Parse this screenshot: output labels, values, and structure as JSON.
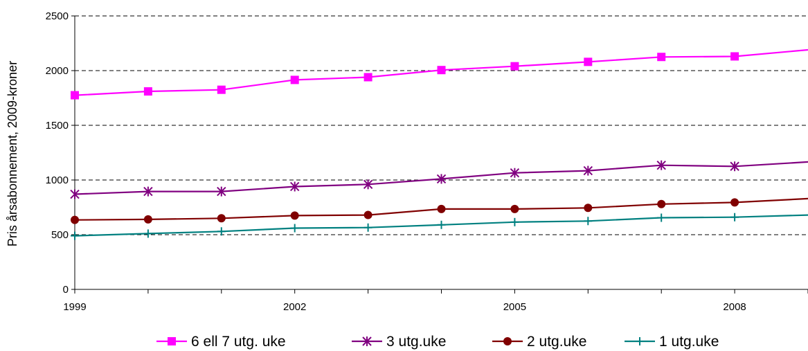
{
  "chart_data": {
    "type": "line",
    "title": "",
    "xlabel": "",
    "ylabel": "Pris årsabonnement, 2009-kroner",
    "x": [
      1999,
      2000,
      2001,
      2002,
      2003,
      2004,
      2005,
      2006,
      2007,
      2008,
      2009
    ],
    "x_tick_labels": [
      "1999",
      "2002",
      "2005",
      "2008"
    ],
    "x_tick_values": [
      1999,
      2002,
      2005,
      2008
    ],
    "y_ticks": [
      0,
      500,
      1000,
      1500,
      2000,
      2500
    ],
    "y_tick_labels": [
      "0",
      "500",
      "1000",
      "1500",
      "2000",
      "2500"
    ],
    "xlim": [
      1999,
      2009
    ],
    "ylim": [
      0,
      2500
    ],
    "grid": "horizontal dashed",
    "legend_position": "bottom",
    "series": [
      {
        "name": "6 ell 7 utg. uke",
        "color": "#ff00ff",
        "marker": "square",
        "values": [
          1775,
          1810,
          1825,
          1915,
          1940,
          2005,
          2040,
          2080,
          2125,
          2130,
          2190
        ]
      },
      {
        "name": "3 utg.uke",
        "color": "#800080",
        "marker": "asterisk",
        "values": [
          870,
          895,
          895,
          940,
          960,
          1010,
          1065,
          1085,
          1135,
          1125,
          1165
        ]
      },
      {
        "name": "2 utg.uke",
        "color": "#800000",
        "marker": "circle",
        "values": [
          635,
          640,
          650,
          675,
          680,
          735,
          735,
          745,
          780,
          795,
          830
        ]
      },
      {
        "name": "1 utg.uke",
        "color": "#008080",
        "marker": "plus",
        "values": [
          490,
          510,
          530,
          560,
          565,
          590,
          615,
          625,
          655,
          660,
          680
        ]
      }
    ]
  }
}
